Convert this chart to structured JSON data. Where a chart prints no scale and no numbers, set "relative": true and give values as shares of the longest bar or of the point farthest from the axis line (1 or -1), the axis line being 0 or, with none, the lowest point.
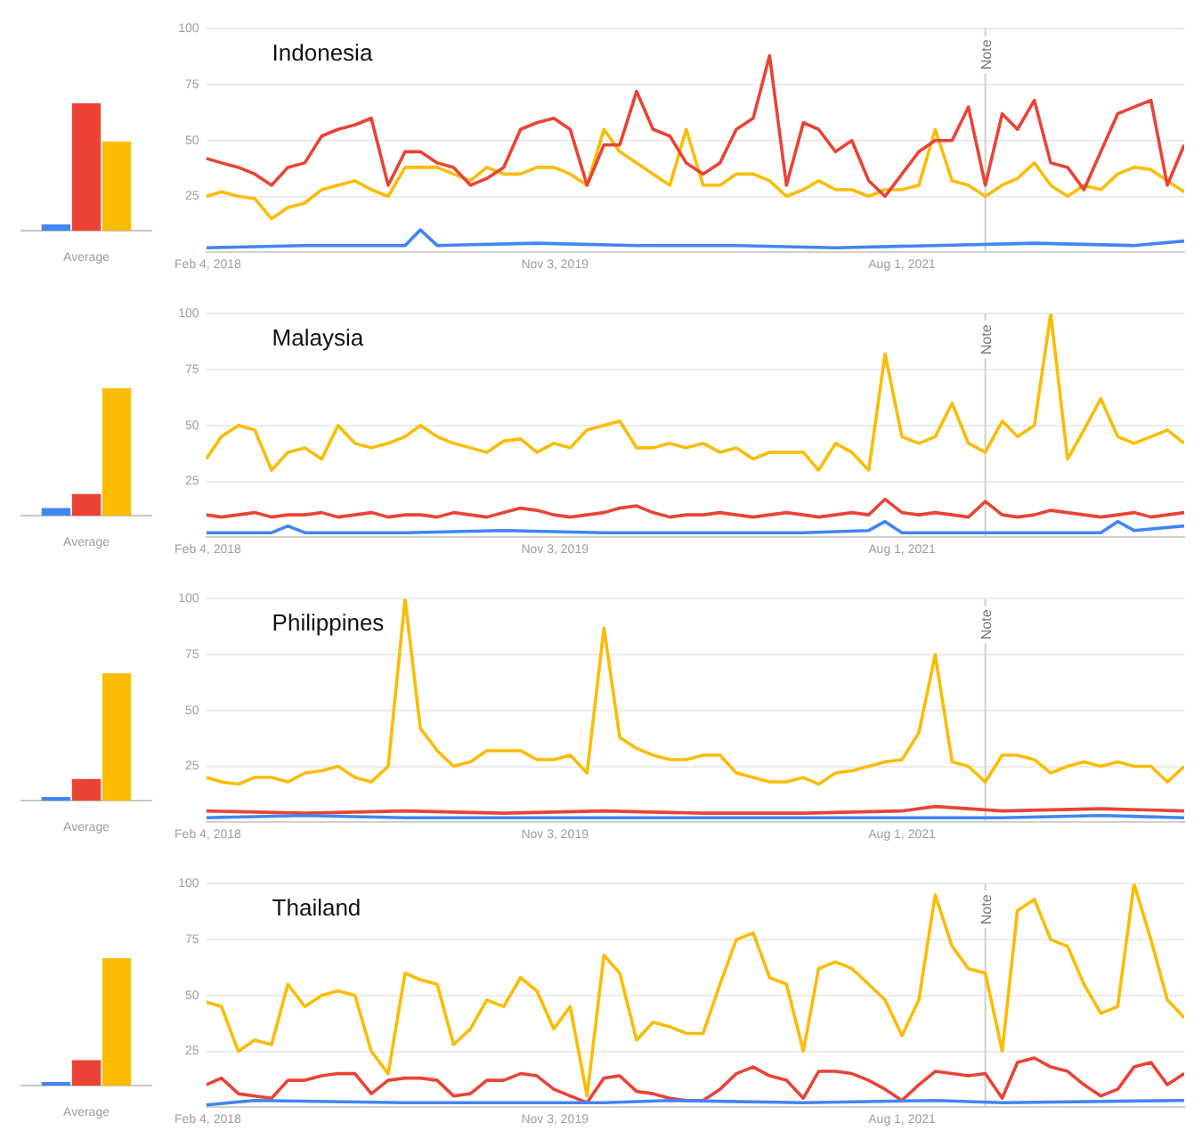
{
  "chart_data": [
    {
      "type": "bar",
      "categories": [
        "Average"
      ],
      "relative": true,
      "tick_labels": "x",
      "series": [
        {
          "color": "#4285f4",
          "values": [
            0.05
          ]
        },
        {
          "color": "#ea4335",
          "values": [
            1
          ]
        },
        {
          "color": "#fbbc04",
          "values": [
            0.7
          ]
        }
      ]
    },
    {
      "type": "line",
      "title": "Indonesia",
      "xlim": [
        "2018-02-01",
        "2023-01-01"
      ],
      "xticks": [
        {
          "value": "2018-02-04",
          "label": "Feb 4, 2018"
        },
        {
          "value": "2019-11-03",
          "label": "Nov 3, 2019"
        },
        {
          "value": "2021-08-01",
          "label": "Aug 1, 2021"
        }
      ],
      "ylim": [
        0,
        100
      ],
      "yticks": [
        25,
        50,
        75,
        100
      ],
      "grid": "y",
      "marker": "none",
      "ref_lines": [
        {
          "axis": "x",
          "value": "2022-01-01",
          "label": "Note"
        }
      ],
      "x": [
        "2018-02",
        "2018-03",
        "2018-04",
        "2018-05",
        "2018-06",
        "2018-07",
        "2018-08",
        "2018-09",
        "2018-10",
        "2018-11",
        "2018-12",
        "2019-01",
        "2019-02",
        "2019-03",
        "2019-04",
        "2019-05",
        "2019-06",
        "2019-07",
        "2019-08",
        "2019-09",
        "2019-10",
        "2019-11",
        "2019-12",
        "2020-01",
        "2020-02",
        "2020-03",
        "2020-04",
        "2020-05",
        "2020-06",
        "2020-07",
        "2020-08",
        "2020-09",
        "2020-10",
        "2020-11",
        "2020-12",
        "2021-01",
        "2021-02",
        "2021-03",
        "2021-04",
        "2021-05",
        "2021-06",
        "2021-07",
        "2021-08",
        "2021-09",
        "2021-10",
        "2021-11",
        "2021-12",
        "2022-01",
        "2022-02",
        "2022-03",
        "2022-04",
        "2022-05",
        "2022-06",
        "2022-07",
        "2022-08",
        "2022-09",
        "2022-10",
        "2022-11",
        "2022-12",
        "2023-01"
      ],
      "series": [
        {
          "color": "#4285f4",
          "x": [
            "2018-02",
            "2018-08",
            "2019-02",
            "2019-03",
            "2019-04",
            "2019-10",
            "2020-04",
            "2020-10",
            "2021-04",
            "2021-10",
            "2022-04",
            "2022-10",
            "2023-01"
          ],
          "values": [
            2,
            3,
            3,
            10,
            3,
            4,
            3,
            3,
            2,
            3,
            4,
            3,
            5
          ]
        },
        {
          "color": "#ea4335",
          "values": [
            42,
            40,
            38,
            35,
            30,
            38,
            40,
            52,
            55,
            57,
            60,
            30,
            45,
            45,
            40,
            38,
            30,
            33,
            38,
            55,
            58,
            60,
            55,
            30,
            48,
            48,
            72,
            55,
            52,
            40,
            35,
            40,
            55,
            60,
            88,
            30,
            58,
            55,
            45,
            50,
            32,
            25,
            35,
            45,
            50,
            50,
            65,
            30,
            62,
            55,
            68,
            40,
            38,
            28,
            45,
            62,
            65,
            68,
            30,
            48
          ]
        },
        {
          "color": "#fbbc04",
          "values": [
            25,
            27,
            25,
            24,
            15,
            20,
            22,
            28,
            30,
            32,
            28,
            25,
            38,
            38,
            38,
            35,
            32,
            38,
            35,
            35,
            38,
            38,
            35,
            30,
            55,
            45,
            40,
            35,
            30,
            55,
            30,
            30,
            35,
            35,
            32,
            25,
            28,
            32,
            28,
            28,
            25,
            28,
            28,
            30,
            55,
            32,
            30,
            25,
            30,
            33,
            40,
            30,
            25,
            30,
            28,
            35,
            38,
            37,
            32,
            27
          ]
        }
      ]
    },
    {
      "type": "bar",
      "categories": [
        "Average"
      ],
      "relative": true,
      "tick_labels": "x",
      "series": [
        {
          "color": "#4285f4",
          "values": [
            0.06
          ]
        },
        {
          "color": "#ea4335",
          "values": [
            0.17
          ]
        },
        {
          "color": "#fbbc04",
          "values": [
            1
          ]
        }
      ]
    },
    {
      "type": "line",
      "title": "Malaysia",
      "xlim": [
        "2018-02-01",
        "2023-01-01"
      ],
      "xticks": [
        {
          "value": "2018-02-04",
          "label": "Feb 4, 2018"
        },
        {
          "value": "2019-11-03",
          "label": "Nov 3, 2019"
        },
        {
          "value": "2021-08-01",
          "label": "Aug 1, 2021"
        }
      ],
      "ylim": [
        0,
        100
      ],
      "yticks": [
        25,
        50,
        75,
        100
      ],
      "grid": "y",
      "marker": "none",
      "ref_lines": [
        {
          "axis": "x",
          "value": "2022-01-01",
          "label": "Note"
        }
      ],
      "x": [
        "2018-02",
        "2018-03",
        "2018-04",
        "2018-05",
        "2018-06",
        "2018-07",
        "2018-08",
        "2018-09",
        "2018-10",
        "2018-11",
        "2018-12",
        "2019-01",
        "2019-02",
        "2019-03",
        "2019-04",
        "2019-05",
        "2019-06",
        "2019-07",
        "2019-08",
        "2019-09",
        "2019-10",
        "2019-11",
        "2019-12",
        "2020-01",
        "2020-02",
        "2020-03",
        "2020-04",
        "2020-05",
        "2020-06",
        "2020-07",
        "2020-08",
        "2020-09",
        "2020-10",
        "2020-11",
        "2020-12",
        "2021-01",
        "2021-02",
        "2021-03",
        "2021-04",
        "2021-05",
        "2021-06",
        "2021-07",
        "2021-08",
        "2021-09",
        "2021-10",
        "2021-11",
        "2021-12",
        "2022-01",
        "2022-02",
        "2022-03",
        "2022-04",
        "2022-05",
        "2022-06",
        "2022-07",
        "2022-08",
        "2022-09",
        "2022-10",
        "2022-11",
        "2022-12",
        "2023-01"
      ],
      "series": [
        {
          "color": "#4285f4",
          "x": [
            "2018-02",
            "2018-06",
            "2018-07",
            "2018-08",
            "2019-02",
            "2019-08",
            "2020-02",
            "2020-08",
            "2021-02",
            "2021-06",
            "2021-07",
            "2021-08",
            "2022-02",
            "2022-08",
            "2022-09",
            "2022-10",
            "2023-01"
          ],
          "values": [
            2,
            2,
            5,
            2,
            2,
            3,
            2,
            2,
            2,
            3,
            7,
            2,
            2,
            2,
            7,
            3,
            5
          ]
        },
        {
          "color": "#ea4335",
          "values": [
            10,
            9,
            10,
            11,
            9,
            10,
            10,
            11,
            9,
            10,
            11,
            9,
            10,
            10,
            9,
            11,
            10,
            9,
            11,
            13,
            12,
            10,
            9,
            10,
            11,
            13,
            14,
            11,
            9,
            10,
            10,
            11,
            10,
            9,
            10,
            11,
            10,
            9,
            10,
            11,
            10,
            17,
            11,
            10,
            11,
            10,
            9,
            16,
            10,
            9,
            10,
            12,
            11,
            10,
            9,
            10,
            11,
            9,
            10,
            11
          ]
        },
        {
          "color": "#fbbc04",
          "values": [
            35,
            45,
            50,
            48,
            30,
            38,
            40,
            35,
            50,
            42,
            40,
            42,
            45,
            50,
            45,
            42,
            40,
            38,
            43,
            44,
            38,
            42,
            40,
            48,
            50,
            52,
            40,
            40,
            42,
            40,
            42,
            38,
            40,
            35,
            38,
            38,
            38,
            30,
            42,
            38,
            30,
            82,
            45,
            42,
            45,
            60,
            42,
            38,
            52,
            45,
            50,
            100,
            35,
            48,
            62,
            45,
            42,
            45,
            48,
            42
          ]
        }
      ]
    },
    {
      "type": "bar",
      "categories": [
        "Average"
      ],
      "relative": true,
      "tick_labels": "x",
      "series": [
        {
          "color": "#4285f4",
          "values": [
            0.03
          ]
        },
        {
          "color": "#ea4335",
          "values": [
            0.17
          ]
        },
        {
          "color": "#fbbc04",
          "values": [
            1
          ]
        }
      ]
    },
    {
      "type": "line",
      "title": "Philippines",
      "xlim": [
        "2018-02-01",
        "2023-01-01"
      ],
      "xticks": [
        {
          "value": "2018-02-04",
          "label": "Feb 4, 2018"
        },
        {
          "value": "2019-11-03",
          "label": "Nov 3, 2019"
        },
        {
          "value": "2021-08-01",
          "label": "Aug 1, 2021"
        }
      ],
      "ylim": [
        0,
        100
      ],
      "yticks": [
        25,
        50,
        75,
        100
      ],
      "grid": "y",
      "marker": "none",
      "ref_lines": [
        {
          "axis": "x",
          "value": "2022-01-01",
          "label": "Note"
        }
      ],
      "x": [
        "2018-02",
        "2018-03",
        "2018-04",
        "2018-05",
        "2018-06",
        "2018-07",
        "2018-08",
        "2018-09",
        "2018-10",
        "2018-11",
        "2018-12",
        "2019-01",
        "2019-02",
        "2019-03",
        "2019-04",
        "2019-05",
        "2019-06",
        "2019-07",
        "2019-08",
        "2019-09",
        "2019-10",
        "2019-11",
        "2019-12",
        "2020-01",
        "2020-02",
        "2020-03",
        "2020-04",
        "2020-05",
        "2020-06",
        "2020-07",
        "2020-08",
        "2020-09",
        "2020-10",
        "2020-11",
        "2020-12",
        "2021-01",
        "2021-02",
        "2021-03",
        "2021-04",
        "2021-05",
        "2021-06",
        "2021-07",
        "2021-08",
        "2021-09",
        "2021-10",
        "2021-11",
        "2021-12",
        "2022-01",
        "2022-02",
        "2022-03",
        "2022-04",
        "2022-05",
        "2022-06",
        "2022-07",
        "2022-08",
        "2022-09",
        "2022-10",
        "2022-11",
        "2022-12",
        "2023-01"
      ],
      "series": [
        {
          "color": "#4285f4",
          "x": [
            "2018-02",
            "2018-08",
            "2019-02",
            "2019-08",
            "2020-02",
            "2020-08",
            "2021-02",
            "2021-08",
            "2021-10",
            "2022-02",
            "2022-08",
            "2023-01"
          ],
          "values": [
            2,
            3,
            2,
            2,
            2,
            2,
            2,
            2,
            2,
            2,
            3,
            2
          ]
        },
        {
          "color": "#ea4335",
          "x": [
            "2018-02",
            "2018-08",
            "2019-02",
            "2019-08",
            "2020-02",
            "2020-08",
            "2021-02",
            "2021-08",
            "2021-10",
            "2022-02",
            "2022-08",
            "2023-01"
          ],
          "values": [
            5,
            4,
            5,
            4,
            5,
            4,
            4,
            5,
            7,
            5,
            6,
            5
          ]
        },
        {
          "color": "#fbbc04",
          "values": [
            20,
            18,
            17,
            20,
            20,
            18,
            22,
            23,
            25,
            20,
            18,
            25,
            100,
            42,
            32,
            25,
            27,
            32,
            32,
            32,
            28,
            28,
            30,
            22,
            87,
            38,
            33,
            30,
            28,
            28,
            30,
            30,
            22,
            20,
            18,
            18,
            20,
            17,
            22,
            23,
            25,
            27,
            28,
            40,
            75,
            27,
            25,
            18,
            30,
            30,
            28,
            22,
            25,
            27,
            25,
            27,
            25,
            25,
            18,
            25
          ]
        }
      ]
    },
    {
      "type": "bar",
      "categories": [
        "Average"
      ],
      "relative": true,
      "tick_labels": "x",
      "series": [
        {
          "color": "#4285f4",
          "values": [
            0.03
          ]
        },
        {
          "color": "#ea4335",
          "values": [
            0.2
          ]
        },
        {
          "color": "#fbbc04",
          "values": [
            1
          ]
        }
      ]
    },
    {
      "type": "line",
      "title": "Thailand",
      "xlim": [
        "2018-02-01",
        "2023-01-01"
      ],
      "xticks": [
        {
          "value": "2018-02-04",
          "label": "Feb 4, 2018"
        },
        {
          "value": "2019-11-03",
          "label": "Nov 3, 2019"
        },
        {
          "value": "2021-08-01",
          "label": "Aug 1, 2021"
        }
      ],
      "ylim": [
        0,
        100
      ],
      "yticks": [
        25,
        50,
        75,
        100
      ],
      "grid": "y",
      "marker": "none",
      "ref_lines": [
        {
          "axis": "x",
          "value": "2022-01-01",
          "label": "Note"
        }
      ],
      "x": [
        "2018-02",
        "2018-03",
        "2018-04",
        "2018-05",
        "2018-06",
        "2018-07",
        "2018-08",
        "2018-09",
        "2018-10",
        "2018-11",
        "2018-12",
        "2019-01",
        "2019-02",
        "2019-03",
        "2019-04",
        "2019-05",
        "2019-06",
        "2019-07",
        "2019-08",
        "2019-09",
        "2019-10",
        "2019-11",
        "2019-12",
        "2020-01",
        "2020-02",
        "2020-03",
        "2020-04",
        "2020-05",
        "2020-06",
        "2020-07",
        "2020-08",
        "2020-09",
        "2020-10",
        "2020-11",
        "2020-12",
        "2021-01",
        "2021-02",
        "2021-03",
        "2021-04",
        "2021-05",
        "2021-06",
        "2021-07",
        "2021-08",
        "2021-09",
        "2021-10",
        "2021-11",
        "2021-12",
        "2022-01",
        "2022-02",
        "2022-03",
        "2022-04",
        "2022-05",
        "2022-06",
        "2022-07",
        "2022-08",
        "2022-09",
        "2022-10",
        "2022-11",
        "2022-12",
        "2023-01"
      ],
      "series": [
        {
          "color": "#4285f4",
          "x": [
            "2018-02",
            "2018-05",
            "2019-02",
            "2020-02",
            "2020-06",
            "2021-02",
            "2021-10",
            "2022-02",
            "2023-01"
          ],
          "values": [
            1,
            3,
            2,
            2,
            3,
            2,
            3,
            2,
            3
          ]
        },
        {
          "color": "#ea4335",
          "values": [
            10,
            13,
            6,
            5,
            4,
            12,
            12,
            14,
            15,
            15,
            6,
            12,
            13,
            13,
            12,
            5,
            6,
            12,
            12,
            15,
            14,
            8,
            5,
            2,
            13,
            14,
            7,
            6,
            4,
            3,
            3,
            8,
            15,
            18,
            14,
            12,
            4,
            16,
            16,
            15,
            12,
            8,
            3,
            10,
            16,
            15,
            14,
            15,
            4,
            20,
            22,
            18,
            16,
            10,
            5,
            8,
            18,
            20,
            10,
            15
          ]
        },
        {
          "color": "#fbbc04",
          "values": [
            47,
            45,
            25,
            30,
            28,
            55,
            45,
            50,
            52,
            50,
            25,
            15,
            60,
            57,
            55,
            28,
            35,
            48,
            45,
            58,
            52,
            35,
            45,
            5,
            68,
            60,
            30,
            38,
            36,
            33,
            33,
            55,
            75,
            78,
            58,
            55,
            25,
            62,
            65,
            62,
            55,
            48,
            32,
            48,
            95,
            72,
            62,
            60,
            25,
            88,
            93,
            75,
            72,
            55,
            42,
            45,
            100,
            75,
            48,
            40
          ]
        }
      ]
    }
  ]
}
